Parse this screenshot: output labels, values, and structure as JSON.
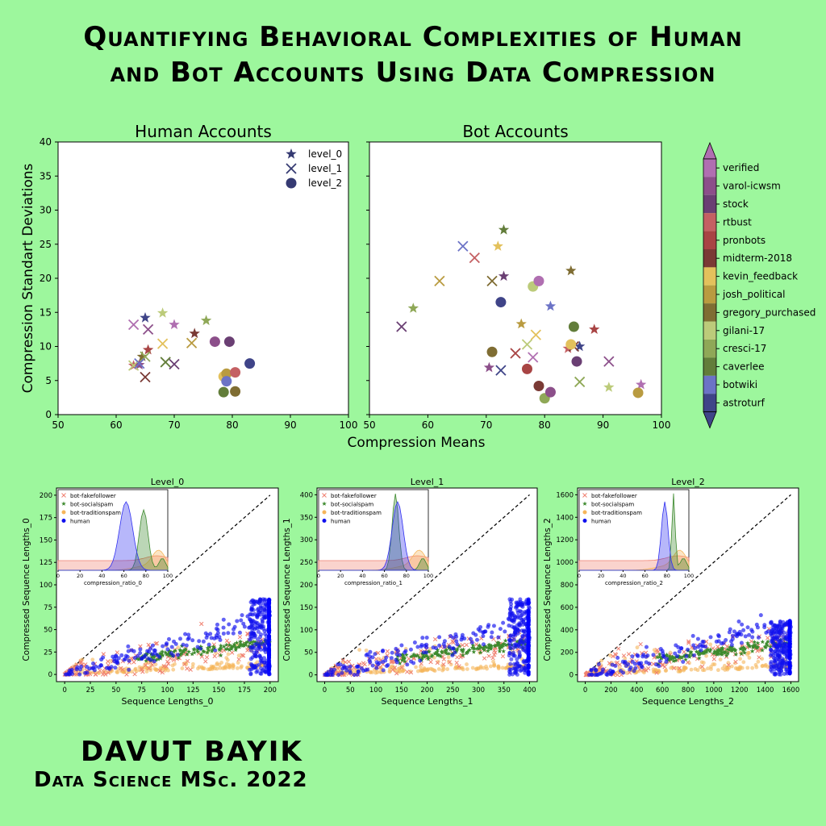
{
  "title_line1": "Quantifying Behavioral Complexities of Human",
  "title_line2": "and Bot Accounts Using Data Compression",
  "author": "DAVUT BAYIK",
  "degree": "Data Science MSc. 2022",
  "colorbar": {
    "labels": [
      "verified",
      "varol-icwsm",
      "stock",
      "rtbust",
      "pronbots",
      "midterm-2018",
      "kevin_feedback",
      "josh_political",
      "gregory_purchased",
      "gilani-17",
      "cresci-17",
      "caverlee",
      "botwiki",
      "astroturf"
    ],
    "colors": [
      "#b06fb1",
      "#8c4f8a",
      "#6a3f73",
      "#c46063",
      "#a84444",
      "#7a3a35",
      "#e3c15c",
      "#b99b40",
      "#7f6d33",
      "#bccb7a",
      "#8fa857",
      "#627d3a",
      "#6c73c6",
      "#3f4488"
    ]
  },
  "top_charts": {
    "human": {
      "title": "Human Accounts",
      "xlabel": "Compression Means",
      "ylabel": "Compression Standart Deviations",
      "xlim": [
        50,
        100
      ],
      "ylim": [
        0,
        40
      ],
      "xticks": [
        "50",
        "60",
        "70",
        "80",
        "90",
        "100"
      ],
      "yticks": [
        "0",
        "5",
        "10",
        "15",
        "20",
        "25",
        "30",
        "35",
        "40"
      ],
      "legend": [
        "level_0",
        "level_1",
        "level_2"
      ]
    },
    "bot": {
      "title": "Bot Accounts",
      "xlim": [
        50,
        100
      ],
      "ylim": [
        0,
        40
      ],
      "xticks": [
        "50",
        "60",
        "70",
        "80",
        "90",
        "100"
      ]
    }
  },
  "bottom_charts": [
    {
      "title": "Level_0",
      "xlabel": "Sequence Lengths_0",
      "ylabel": "Compressed Sequence Lengths_0",
      "xticks": [
        "0",
        "25",
        "50",
        "75",
        "100",
        "125",
        "150",
        "175",
        "200"
      ],
      "yticks": [
        "0",
        "25",
        "50",
        "75",
        "100",
        "125",
        "150",
        "175",
        "200"
      ],
      "inset_xlabel": "compression_ratio_0",
      "inset_xticks": [
        "0",
        "20",
        "40",
        "60",
        "80",
        "100"
      ]
    },
    {
      "title": "Level_1",
      "xlabel": "Sequence Lengths_1",
      "ylabel": "Compressed Sequence Lengths_1",
      "xticks": [
        "0",
        "50",
        "100",
        "150",
        "200",
        "250",
        "300",
        "350",
        "400"
      ],
      "yticks": [
        "0",
        "50",
        "100",
        "150",
        "200",
        "250",
        "300",
        "350",
        "400"
      ],
      "inset_xlabel": "compression_ratio_1",
      "inset_xticks": [
        "0",
        "20",
        "40",
        "60",
        "80",
        "100"
      ]
    },
    {
      "title": "Level_2",
      "xlabel": "Sequence Lengths_2",
      "ylabel": "Compressed Sequence Lengths_2",
      "xticks": [
        "0",
        "200",
        "400",
        "600",
        "800",
        "1000",
        "1200",
        "1400",
        "1600"
      ],
      "yticks": [
        "0",
        "200",
        "400",
        "600",
        "800",
        "1000",
        "1200",
        "1400",
        "1600"
      ],
      "inset_xlabel": "compression_ratio_2",
      "inset_xticks": [
        "0",
        "20",
        "40",
        "60",
        "80",
        "100"
      ]
    }
  ],
  "bottom_legend": [
    "bot-fakefollower",
    "bot-socialspam",
    "bot-traditionspam",
    "human"
  ],
  "chart_data": [
    {
      "type": "scatter",
      "title": "Human Accounts",
      "xlabel": "Compression Means",
      "ylabel": "Compression Standart Deviations",
      "xlim": [
        50,
        100
      ],
      "ylim": [
        0,
        40
      ],
      "series": [
        {
          "name": "level_0",
          "marker": "star",
          "points": [
            [
              63,
              7.2
            ],
            [
              64.5,
              8.5
            ],
            [
              65,
              14.2
            ],
            [
              65.5,
              9.5
            ],
            [
              68,
              14.9
            ],
            [
              70,
              13.2
            ],
            [
              73.5,
              11.9
            ],
            [
              75.5,
              13.8
            ],
            [
              64,
              7.3
            ]
          ]
        },
        {
          "name": "level_1",
          "marker": "x",
          "points": [
            [
              63,
              7.2
            ],
            [
              63,
              13.2
            ],
            [
              65,
              5.5
            ],
            [
              65,
              8.5
            ],
            [
              65.5,
              12.5
            ],
            [
              68,
              10.4
            ],
            [
              68.5,
              7.7
            ],
            [
              70,
              7.4
            ],
            [
              73,
              10.5
            ],
            [
              64,
              7.5
            ]
          ]
        },
        {
          "name": "level_2",
          "marker": "circle",
          "points": [
            [
              77,
              10.7
            ],
            [
              78.5,
              5.6
            ],
            [
              78.5,
              3.3
            ],
            [
              79.5,
              10.7
            ],
            [
              79,
              6
            ],
            [
              79,
              4.9
            ],
            [
              80.5,
              6.2
            ],
            [
              80.5,
              3.4
            ],
            [
              83,
              7.5
            ]
          ]
        }
      ]
    },
    {
      "type": "scatter",
      "title": "Bot Accounts",
      "xlim": [
        50,
        100
      ],
      "ylim": [
        0,
        40
      ],
      "series": [
        {
          "name": "level_0",
          "marker": "star",
          "points": [
            [
              57.5,
              15.6
            ],
            [
              70.5,
              6.9
            ],
            [
              72,
              24.7
            ],
            [
              73,
              27.1
            ],
            [
              73,
              20.3
            ],
            [
              76,
              13.3
            ],
            [
              81,
              15.9
            ],
            [
              84,
              9.7
            ],
            [
              84.5,
              21.1
            ],
            [
              86,
              10
            ],
            [
              88.5,
              12.5
            ],
            [
              91,
              4
            ],
            [
              96.5,
              4.4
            ]
          ]
        },
        {
          "name": "level_1",
          "marker": "x",
          "points": [
            [
              55.5,
              12.9
            ],
            [
              62,
              19.6
            ],
            [
              66,
              24.7
            ],
            [
              68,
              23
            ],
            [
              71,
              19.6
            ],
            [
              72.5,
              6.5
            ],
            [
              75,
              9
            ],
            [
              77,
              10.3
            ],
            [
              78,
              8.4
            ],
            [
              85,
              10
            ],
            [
              86,
              4.8
            ],
            [
              91,
              7.8
            ],
            [
              78.5,
              11.7
            ]
          ]
        },
        {
          "name": "level_2",
          "marker": "circle",
          "points": [
            [
              71,
              9.2
            ],
            [
              72.5,
              16.5
            ],
            [
              77,
              6.7
            ],
            [
              78,
              18.8
            ],
            [
              79,
              19.6
            ],
            [
              79,
              4.2
            ],
            [
              80,
              2.4
            ],
            [
              81,
              3.3
            ],
            [
              84.5,
              10.3
            ],
            [
              85,
              12.9
            ],
            [
              85.5,
              7.8
            ],
            [
              96,
              3.2
            ]
          ]
        }
      ]
    },
    {
      "type": "scatter",
      "title": "Level_0",
      "xlabel": "Sequence Lengths_0",
      "ylabel": "Compressed Sequence Lengths_0",
      "xlim": [
        -8,
        208
      ],
      "ylim": [
        -8,
        208
      ],
      "series": [
        {
          "name": "bot-fakefollower",
          "range_x": [
            0,
            200
          ],
          "range_y": [
            0,
            60
          ]
        },
        {
          "name": "bot-socialspam",
          "range_x": [
            70,
            200
          ],
          "range_y": [
            15,
            30
          ]
        },
        {
          "name": "bot-traditionspam",
          "range_x": [
            0,
            200
          ],
          "range_y": [
            0,
            30
          ]
        },
        {
          "name": "human",
          "range_x": [
            0,
            200
          ],
          "range_y": [
            0,
            85
          ]
        }
      ]
    },
    {
      "type": "scatter",
      "title": "Level_1",
      "xlabel": "Sequence Lengths_1",
      "ylabel": "Compressed Sequence Lengths_1",
      "xlim": [
        -15,
        415
      ],
      "ylim": [
        -15,
        415
      ],
      "series": [
        {
          "name": "bot-fakefollower",
          "range_x": [
            0,
            400
          ],
          "range_y": [
            0,
            100
          ]
        },
        {
          "name": "bot-socialspam",
          "range_x": [
            100,
            400
          ],
          "range_y": [
            40,
            100
          ]
        },
        {
          "name": "bot-traditionspam",
          "range_x": [
            0,
            400
          ],
          "range_y": [
            0,
            80
          ]
        },
        {
          "name": "human",
          "range_x": [
            0,
            400
          ],
          "range_y": [
            0,
            175
          ]
        }
      ]
    },
    {
      "type": "scatter",
      "title": "Level_2",
      "xlabel": "Sequence Lengths_2",
      "ylabel": "Compressed Sequence Lengths_2",
      "xlim": [
        -60,
        1660
      ],
      "ylim": [
        -60,
        1660
      ],
      "series": [
        {
          "name": "bot-fakefollower",
          "range_x": [
            0,
            1600
          ],
          "range_y": [
            0,
            250
          ]
        },
        {
          "name": "bot-socialspam",
          "range_x": [
            600,
            1600
          ],
          "range_y": [
            100,
            250
          ]
        },
        {
          "name": "bot-traditionspam",
          "range_x": [
            0,
            1600
          ],
          "range_y": [
            0,
            150
          ]
        },
        {
          "name": "human",
          "range_x": [
            0,
            1600
          ],
          "range_y": [
            0,
            480
          ]
        }
      ]
    }
  ]
}
